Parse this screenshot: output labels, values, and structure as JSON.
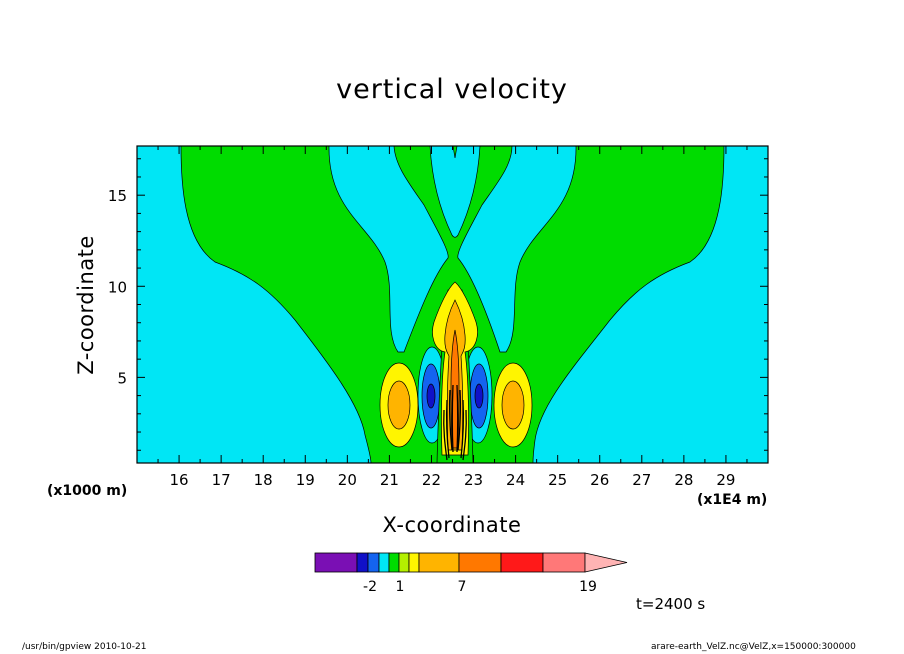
{
  "chart_data": {
    "type": "contour",
    "title": "vertical velocity",
    "xlabel": "X-coordinate",
    "ylabel": "Z-coordinate",
    "x_multiplier": "(x1E4 m)",
    "y_multiplier": "(x1000 m)",
    "xlim": [
      15,
      30
    ],
    "ylim": [
      0.3,
      17.7
    ],
    "x_ticks": [
      16,
      17,
      18,
      19,
      20,
      21,
      22,
      23,
      24,
      25,
      26,
      27,
      28,
      29
    ],
    "y_ticks": [
      5,
      10,
      15
    ],
    "colorbar": {
      "tick_labels": [
        "-2",
        "1",
        "7",
        "19"
      ],
      "colors": [
        "#7a0fb4",
        "#1010c8",
        "#1464f0",
        "#00e6f5",
        "#00dc00",
        "#b4f000",
        "#fff500",
        "#ffb400",
        "#ff7800",
        "#ff1919",
        "#ff7878",
        "#ffb4b4"
      ]
    },
    "time_label": "t=2400 s",
    "contour_fill_colors": {
      "weak_downdraft": "#00e6f5",
      "weak_updraft": "#00dc00",
      "downdraft": "#1464f0",
      "strong_downdraft": "#1010c8",
      "moderate_updraft": "#fff500",
      "updraft": "#ffb400",
      "strong_updraft": "#ff7800"
    }
  },
  "footer": {
    "left": "/usr/bin/gpview  2010-10-21",
    "right": "arare-earth_VelZ.nc@VelZ,x=150000:300000"
  }
}
